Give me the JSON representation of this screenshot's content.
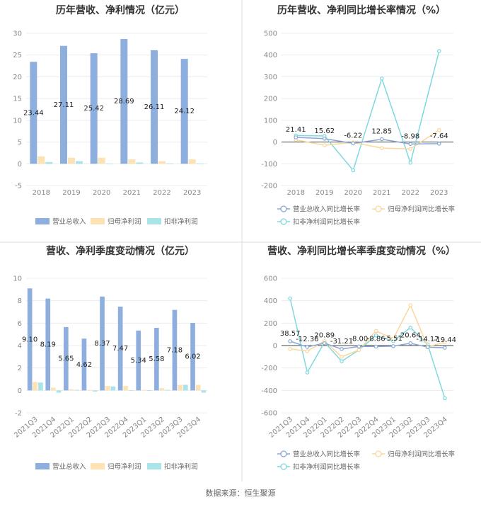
{
  "source_text": "数据来源：恒生聚源",
  "colors": {
    "revenue": "#8eafde",
    "netprofit": "#fde2b3",
    "deducted": "#a9e4e8",
    "revenue_line": "#8aa8d6",
    "netprofit_line": "#fbd79b",
    "deducted_line": "#7fd8de",
    "grid": "#ececec",
    "divider": "#dddddd"
  },
  "chart_data": [
    {
      "type": "bar",
      "title": "历年营收、净利情况（亿元）",
      "categories": [
        "2018",
        "2019",
        "2020",
        "2021",
        "2022",
        "2023"
      ],
      "ylim": [
        -5,
        30
      ],
      "yticks": [
        -5,
        0,
        5,
        10,
        15,
        20,
        25,
        30
      ],
      "series": [
        {
          "name": "营业总收入",
          "values": [
            23.44,
            27.11,
            25.42,
            28.69,
            26.11,
            24.12
          ]
        },
        {
          "name": "归母净利润",
          "values": [
            1.7,
            1.4,
            1.4,
            1.0,
            0.6,
            1.0
          ]
        },
        {
          "name": "扣非净利润",
          "values": [
            0.4,
            0.6,
            -0.1,
            0.3,
            0.05,
            0.05
          ]
        }
      ],
      "data_labels": [
        "23.44",
        "27.11",
        "25.42",
        "28.69",
        "26.11",
        "24.12"
      ]
    },
    {
      "type": "line",
      "title": "历年营收、净利同比增长率情况（%）",
      "categories": [
        "2018",
        "2019",
        "2020",
        "2021",
        "2022",
        "2023"
      ],
      "ylim": [
        -200,
        500
      ],
      "yticks": [
        -200,
        -100,
        0,
        100,
        200,
        300,
        400,
        500
      ],
      "series": [
        {
          "name": "营业总收入同比增长率",
          "values": [
            21.41,
            15.62,
            -6.22,
            12.85,
            -8.98,
            -7.64
          ]
        },
        {
          "name": "归母净利润同比增长率",
          "values": [
            10,
            -15,
            -2,
            -28,
            -32,
            55
          ]
        },
        {
          "name": "扣非净利润同比增长率",
          "values": [
            30,
            28,
            -130,
            292,
            -95,
            418
          ]
        }
      ],
      "data_labels": [
        "21.41",
        "15.62",
        "-6.22",
        "12.85",
        "-8.98",
        "-7.64"
      ]
    },
    {
      "type": "bar",
      "title": "营收、净利季度变动情况（亿元）",
      "categories": [
        "2021Q3",
        "2021Q4",
        "2022Q1",
        "2022Q2",
        "2022Q3",
        "2022Q4",
        "2023Q1",
        "2023Q2",
        "2023Q3",
        "2023Q4"
      ],
      "ylim": [
        -2,
        10
      ],
      "yticks": [
        -2,
        0,
        2,
        4,
        6,
        8,
        10
      ],
      "series": [
        {
          "name": "营业总收入",
          "values": [
            9.1,
            8.19,
            5.65,
            4.62,
            8.37,
            7.47,
            5.34,
            5.58,
            7.18,
            6.02
          ]
        },
        {
          "name": "归母净利润",
          "values": [
            0.75,
            0.25,
            0.1,
            0.05,
            0.4,
            0.4,
            0.05,
            0.2,
            0.5,
            0.5
          ]
        },
        {
          "name": "扣非净利润",
          "values": [
            0.7,
            -0.2,
            0.05,
            -0.1,
            0.35,
            -0.05,
            0.02,
            0.05,
            0.5,
            -0.2
          ]
        }
      ],
      "data_labels": [
        "9.10",
        "8.19",
        "5.65",
        "4.62",
        "8.37",
        "7.47",
        "5.34",
        "5.58",
        "7.18",
        "6.02"
      ]
    },
    {
      "type": "line",
      "title": "营收、净利同比增长率季度变动情况（%）",
      "categories": [
        "2021Q3",
        "2021Q4",
        "2022Q1",
        "2022Q2",
        "2022Q3",
        "2022Q4",
        "2023Q1",
        "2023Q2",
        "2023Q3",
        "2023Q4"
      ],
      "ylim": [
        -600,
        600
      ],
      "yticks": [
        -600,
        -400,
        -200,
        0,
        200,
        400,
        600
      ],
      "series": [
        {
          "name": "营业总收入同比增长率",
          "values": [
            38.57,
            -12.36,
            20.89,
            -31.21,
            -8.0,
            -8.86,
            -5.51,
            20.64,
            -14.17,
            -19.44
          ]
        },
        {
          "name": "归母净利润同比增长率",
          "values": [
            -30,
            -50,
            40,
            -100,
            -40,
            130,
            60,
            360,
            -10,
            30
          ]
        },
        {
          "name": "扣非净利润同比增长率",
          "values": [
            420,
            -240,
            30,
            -140,
            -40,
            90,
            40,
            160,
            10,
            -470
          ]
        }
      ],
      "data_labels": [
        "38.57",
        "-12.36",
        "20.89",
        "-31.21",
        "-8.00",
        "-8.86",
        "-5.51",
        "20.64",
        "-14.17",
        "-19.44"
      ]
    }
  ]
}
